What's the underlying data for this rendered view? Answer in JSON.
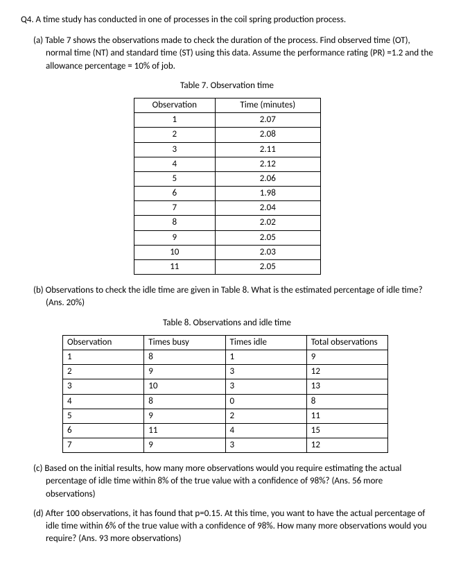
{
  "q_title": "Q4. A time study has conducted in one of processes in the coil spring production process.",
  "part_a": {
    "label": "(a)",
    "text": "Table 7 shows the observations made to check the duration of the process. Find observed time (OT), normal time (NT) and standard time (ST) using this data. Assume the performance rating (PR) =1.2 and the allowance percentage = 10% of job.",
    "caption": "Table 7. Observation time",
    "headers": [
      "Observation",
      "Time (minutes)"
    ],
    "rows": [
      [
        "1",
        "2.07"
      ],
      [
        "2",
        "2.08"
      ],
      [
        "3",
        "2.11"
      ],
      [
        "4",
        "2.12"
      ],
      [
        "5",
        "2.06"
      ],
      [
        "6",
        "1.98"
      ],
      [
        "7",
        "2.04"
      ],
      [
        "8",
        "2.02"
      ],
      [
        "9",
        "2.05"
      ],
      [
        "10",
        "2.03"
      ],
      [
        "11",
        "2.05"
      ]
    ]
  },
  "part_b": {
    "label": "(b)",
    "text": "Observations to check the idle time are given in Table 8. What is the estimated percentage of idle time? (Ans. 20%)",
    "caption": "Table 8. Observations and idle time",
    "headers": [
      "Observation",
      "Times busy",
      "Times idle",
      "Total observations"
    ],
    "rows": [
      [
        "1",
        "8",
        "1",
        "9"
      ],
      [
        "2",
        "9",
        "3",
        "12"
      ],
      [
        "3",
        "10",
        "3",
        "13"
      ],
      [
        "4",
        "8",
        "0",
        "8"
      ],
      [
        "5",
        "9",
        "2",
        "11"
      ],
      [
        "6",
        "11",
        "4",
        "15"
      ],
      [
        "7",
        "9",
        "3",
        "12"
      ]
    ]
  },
  "part_c": {
    "label": "(c)",
    "text": "Based on the initial results, how many more observations would you require estimating the actual percentage of idle time within 8% of the true value with a confidence of 98%? (Ans. 56 more observations)"
  },
  "part_d": {
    "label": "(d)",
    "text": "After 100 observations, it has found that p=0.15. At this time, you want to have the actual percentage of idle time within 6% of the true value with a confidence of 98%. How many more observations would you require? (Ans. 93 more observations)"
  }
}
